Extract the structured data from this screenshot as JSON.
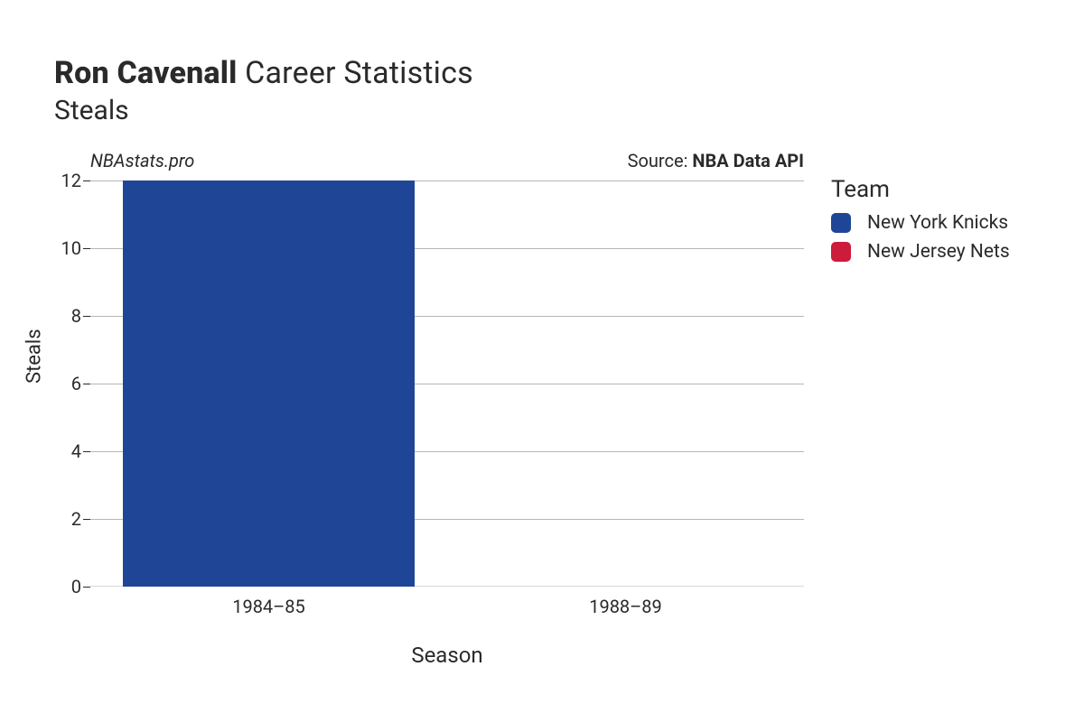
{
  "title": {
    "player": "Ron Cavenall",
    "rest": "Career Statistics",
    "subtitle": "Steals"
  },
  "attribution": {
    "site": "NBAstats.pro",
    "source_label": "Source: ",
    "source_name": "NBA Data API"
  },
  "chart": {
    "type": "bar",
    "x_label": "Season",
    "y_label": "Steals",
    "background_color": "#ffffff",
    "grid_color": "#b7b7b7",
    "text_color": "#2a2a2a",
    "title_fontsize": 34,
    "subtitle_fontsize": 30,
    "label_fontsize": 22,
    "tick_fontsize": 20,
    "ylim": [
      0,
      12
    ],
    "yticks": [
      0,
      2,
      4,
      6,
      8,
      10,
      12
    ],
    "bar_width": 0.82,
    "categories": [
      "1984–85",
      "1988–89"
    ],
    "values": [
      12,
      0
    ],
    "bar_colors": [
      "#1f4696",
      "#cd1b3b"
    ],
    "bar_teams": [
      "New York Knicks",
      "New Jersey Nets"
    ]
  },
  "legend": {
    "title": "Team",
    "items": [
      {
        "label": "New York Knicks",
        "color": "#1f4696"
      },
      {
        "label": "New Jersey Nets",
        "color": "#cd1b3b"
      }
    ]
  }
}
